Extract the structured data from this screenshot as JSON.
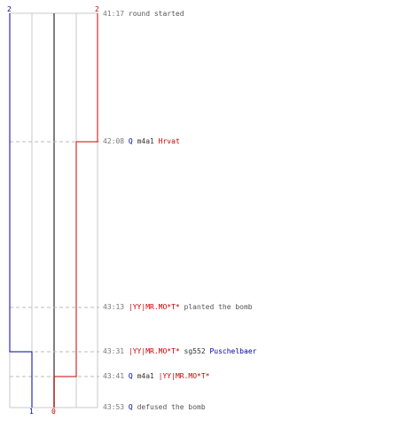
{
  "colors": {
    "t_team": "#0000aa",
    "ct_team": "#cc0000",
    "grid": "#c8c8c8",
    "guide": "#bbbbbb",
    "axis": "#555555"
  },
  "counters": {
    "top_left": "2",
    "top_right": "2",
    "bottom_left": "1",
    "bottom_right": "0"
  },
  "events": [
    {
      "time": "41:17",
      "text": "round started"
    },
    {
      "time": "42:08",
      "killer": "Q",
      "weapon": "m4a1",
      "victim": "Hrvat"
    },
    {
      "time": "43:13",
      "actor": "|YY|MR.MO*T*",
      "text": "planted the bomb"
    },
    {
      "time": "43:31",
      "killer": "|YY|MR.MO*T*",
      "weapon": "sg552",
      "victim": "Puschelbaer"
    },
    {
      "time": "43:41",
      "killer": "Q",
      "weapon": "m4a1",
      "victim": "|YY|MR.MO*T*"
    },
    {
      "time": "43:53",
      "actor": "Q",
      "text": "defused the bomb"
    }
  ]
}
